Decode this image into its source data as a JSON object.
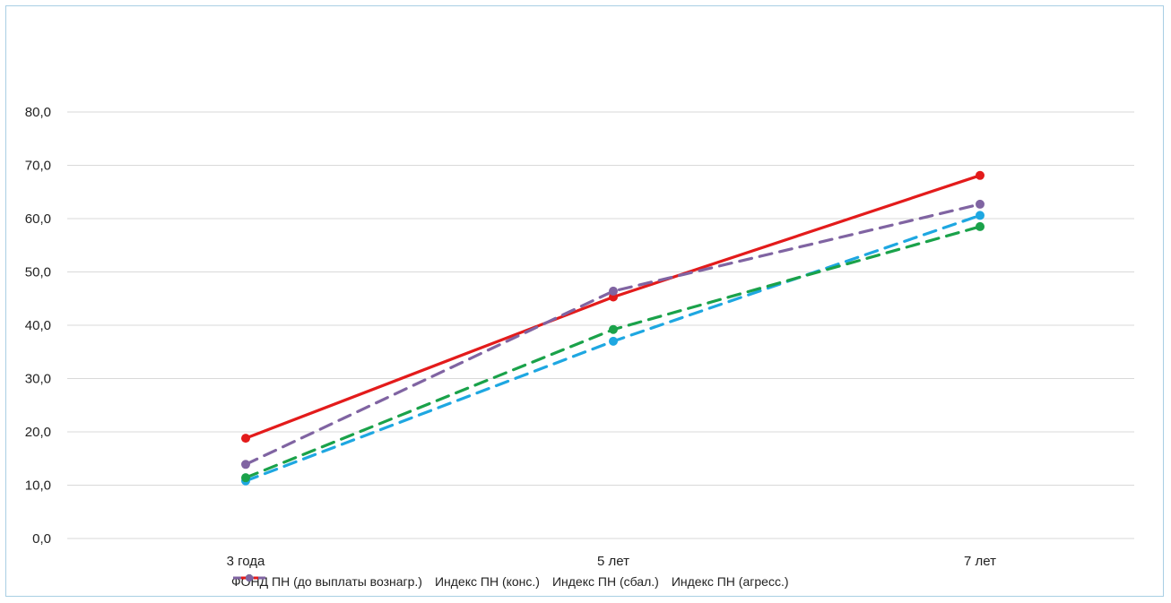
{
  "chart_data": {
    "type": "line",
    "categories": [
      "3 года",
      "5 лет",
      "7 лет"
    ],
    "ylim": [
      0,
      80
    ],
    "yticks": [
      "0,0",
      "10,0",
      "20,0",
      "30,0",
      "40,0",
      "50,0",
      "60,0",
      "70,0",
      "80,0"
    ],
    "grid": true,
    "legend_position": "bottom",
    "series": [
      {
        "name": "ФОНД ПН (до выплаты вознагр.)",
        "values": [
          18.8,
          45.3,
          68.1
        ],
        "color": "#e31b1b",
        "dashed": false
      },
      {
        "name": "Индекс ПН (конс.)",
        "values": [
          10.8,
          37.0,
          60.6
        ],
        "color": "#1ea7e1",
        "dashed": true
      },
      {
        "name": "Индекс ПН (сбал.)",
        "values": [
          11.4,
          39.2,
          58.5
        ],
        "color": "#1aa24a",
        "dashed": true
      },
      {
        "name": "Индекс ПН (агресс.)",
        "values": [
          13.9,
          46.4,
          62.7
        ],
        "color": "#8064a2",
        "dashed": true
      }
    ]
  }
}
